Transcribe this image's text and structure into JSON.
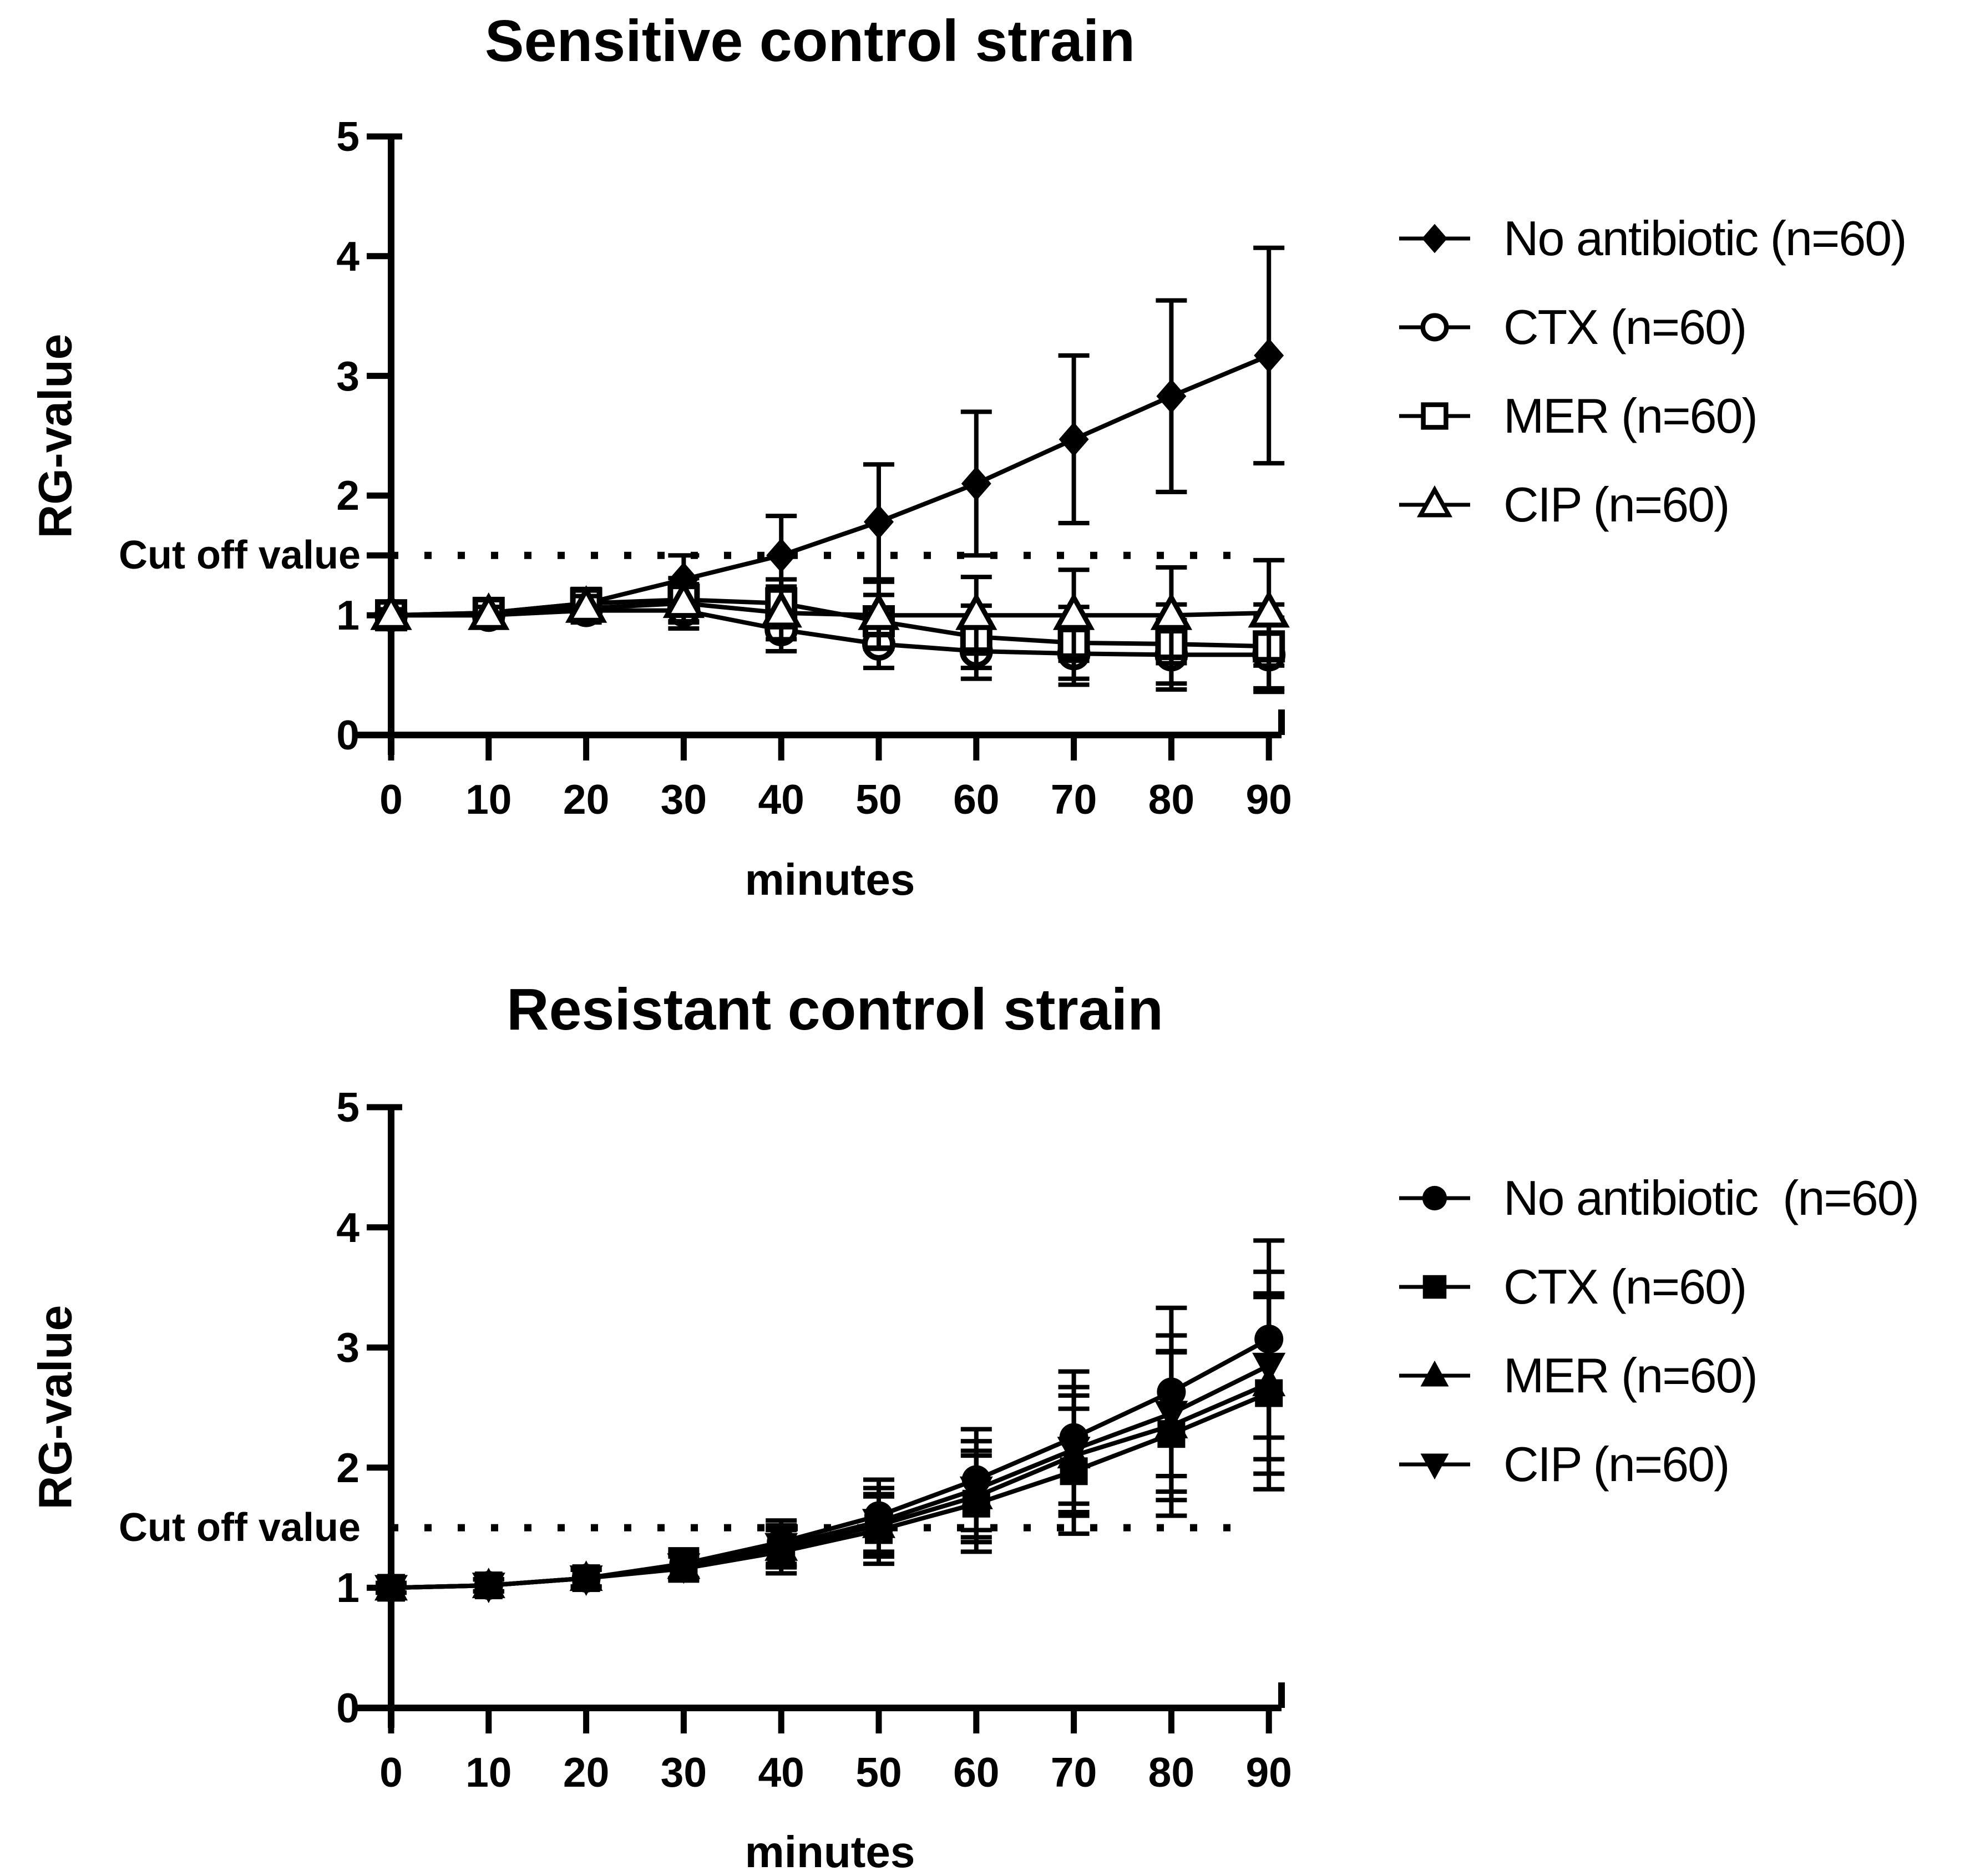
{
  "figure": {
    "background_color": "#ffffff",
    "ink_color": "#000000"
  },
  "chart_data": [
    {
      "type": "line",
      "title": "Sensitive control strain",
      "ylabel": "RG-value",
      "xlabel": "minutes",
      "ylim": [
        0,
        5
      ],
      "yticks": [
        "0",
        "1",
        "2",
        "3",
        "4",
        "5"
      ],
      "x": [
        0,
        10,
        20,
        30,
        40,
        50,
        60,
        70,
        80,
        90
      ],
      "xticks": [
        "0",
        "10",
        "20",
        "30",
        "40",
        "50",
        "60",
        "70",
        "80",
        "90"
      ],
      "grid": false,
      "legend_position": "right",
      "cutoff": {
        "label": "Cut off value",
        "value": 1.5,
        "style": "dotted",
        "axis_tick": true
      },
      "series": [
        {
          "name": "No antibiotic (n=60)",
          "marker": "filled-diamond",
          "values": [
            1.0,
            1.02,
            1.1,
            1.3,
            1.5,
            1.78,
            2.1,
            2.47,
            2.83,
            3.17
          ],
          "errors": [
            0.05,
            0.06,
            0.1,
            0.2,
            0.33,
            0.48,
            0.6,
            0.7,
            0.8,
            0.9
          ]
        },
        {
          "name": "CTX (n=60)",
          "marker": "open-circle",
          "values": [
            1.0,
            1.0,
            1.04,
            1.04,
            0.88,
            0.76,
            0.7,
            0.68,
            0.67,
            0.67
          ],
          "errors": [
            0.05,
            0.07,
            0.1,
            0.15,
            0.18,
            0.2,
            0.23,
            0.26,
            0.29,
            0.31
          ]
        },
        {
          "name": "MER (n=60)",
          "marker": "open-square",
          "values": [
            1.0,
            1.02,
            1.1,
            1.13,
            1.1,
            0.95,
            0.82,
            0.77,
            0.76,
            0.74
          ],
          "errors": [
            0.05,
            0.07,
            0.12,
            0.18,
            0.2,
            0.22,
            0.26,
            0.3,
            0.33,
            0.35
          ]
        },
        {
          "name": "CIP (n=60)",
          "marker": "open-triangle-up",
          "values": [
            1.0,
            1.0,
            1.06,
            1.1,
            1.02,
            1.0,
            1.0,
            1.0,
            1.0,
            1.02
          ],
          "errors": [
            0.05,
            0.07,
            0.1,
            0.16,
            0.22,
            0.28,
            0.32,
            0.38,
            0.4,
            0.44
          ]
        }
      ]
    },
    {
      "type": "line",
      "title": "Resistant control strain",
      "ylabel": "RG-value",
      "xlabel": "minutes",
      "ylim": [
        0,
        5
      ],
      "yticks": [
        "0",
        "1",
        "2",
        "3",
        "4",
        "5"
      ],
      "x": [
        0,
        10,
        20,
        30,
        40,
        50,
        60,
        70,
        80,
        90
      ],
      "xticks": [
        "0",
        "10",
        "20",
        "30",
        "40",
        "50",
        "60",
        "70",
        "80",
        "90"
      ],
      "grid": false,
      "legend_position": "right",
      "cutoff": {
        "label": "Cut off value",
        "value": 1.5,
        "style": "dotted",
        "axis_tick": false
      },
      "series": [
        {
          "name": "No antibiotic  (n=60)",
          "marker": "filled-circle",
          "values": [
            1.0,
            1.02,
            1.08,
            1.2,
            1.38,
            1.6,
            1.9,
            2.25,
            2.63,
            3.07
          ],
          "errors": [
            0.04,
            0.05,
            0.07,
            0.12,
            0.18,
            0.3,
            0.42,
            0.55,
            0.7,
            0.82
          ]
        },
        {
          "name": "CTX (n=60)",
          "marker": "filled-square",
          "values": [
            1.0,
            1.02,
            1.08,
            1.16,
            1.3,
            1.48,
            1.7,
            1.97,
            2.28,
            2.62
          ],
          "errors": [
            0.04,
            0.05,
            0.07,
            0.1,
            0.18,
            0.28,
            0.4,
            0.52,
            0.68,
            0.8
          ]
        },
        {
          "name": "MER (n=60)",
          "marker": "filled-triangle-up",
          "values": [
            1.0,
            1.02,
            1.08,
            1.18,
            1.33,
            1.52,
            1.76,
            2.1,
            2.35,
            2.7
          ],
          "errors": [
            0.04,
            0.05,
            0.07,
            0.1,
            0.16,
            0.26,
            0.38,
            0.5,
            0.62,
            0.75
          ]
        },
        {
          "name": "CIP (n=60)",
          "marker": "filled-triangle-down",
          "values": [
            1.0,
            1.02,
            1.08,
            1.18,
            1.35,
            1.55,
            1.82,
            2.15,
            2.45,
            2.85
          ],
          "errors": [
            0.04,
            0.05,
            0.07,
            0.11,
            0.17,
            0.28,
            0.4,
            0.52,
            0.65,
            0.78
          ]
        }
      ]
    }
  ]
}
